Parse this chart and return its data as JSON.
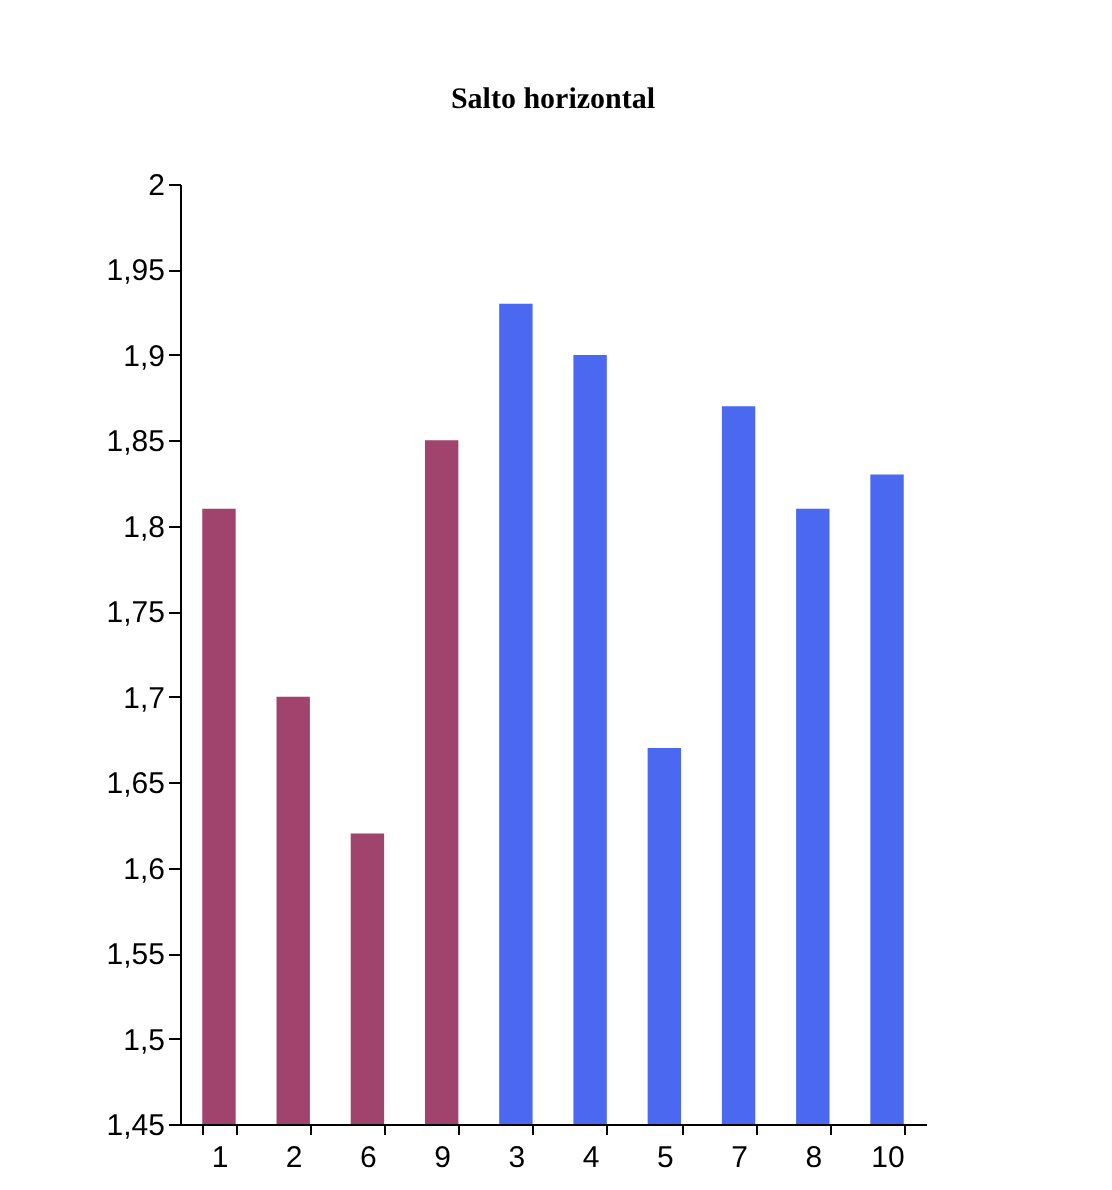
{
  "chart_data": {
    "type": "bar",
    "title": "Salto horizontal",
    "categories": [
      "1",
      "2",
      "6",
      "9",
      "3",
      "4",
      "5",
      "7",
      "8",
      "10"
    ],
    "values": [
      1.81,
      1.7,
      1.62,
      1.85,
      1.93,
      1.9,
      1.67,
      1.87,
      1.81,
      1.83
    ],
    "colors": [
      "#a0446e",
      "#a0446e",
      "#a0446e",
      "#a0446e",
      "#4a68f0",
      "#4a68f0",
      "#4a68f0",
      "#4a68f0",
      "#4a68f0",
      "#4a68f0"
    ],
    "ylim": [
      1.45,
      2
    ],
    "yticks": [
      {
        "value": 1.45,
        "label": "1,45"
      },
      {
        "value": 1.5,
        "label": "1,5"
      },
      {
        "value": 1.55,
        "label": "1,55"
      },
      {
        "value": 1.6,
        "label": "1,6"
      },
      {
        "value": 1.65,
        "label": "1,65"
      },
      {
        "value": 1.7,
        "label": "1,7"
      },
      {
        "value": 1.75,
        "label": "1,75"
      },
      {
        "value": 1.8,
        "label": "1,8"
      },
      {
        "value": 1.85,
        "label": "1,85"
      },
      {
        "value": 1.9,
        "label": "1,9"
      },
      {
        "value": 1.95,
        "label": "1,95"
      },
      {
        "value": 2,
        "label": "2"
      }
    ],
    "grid": false
  }
}
